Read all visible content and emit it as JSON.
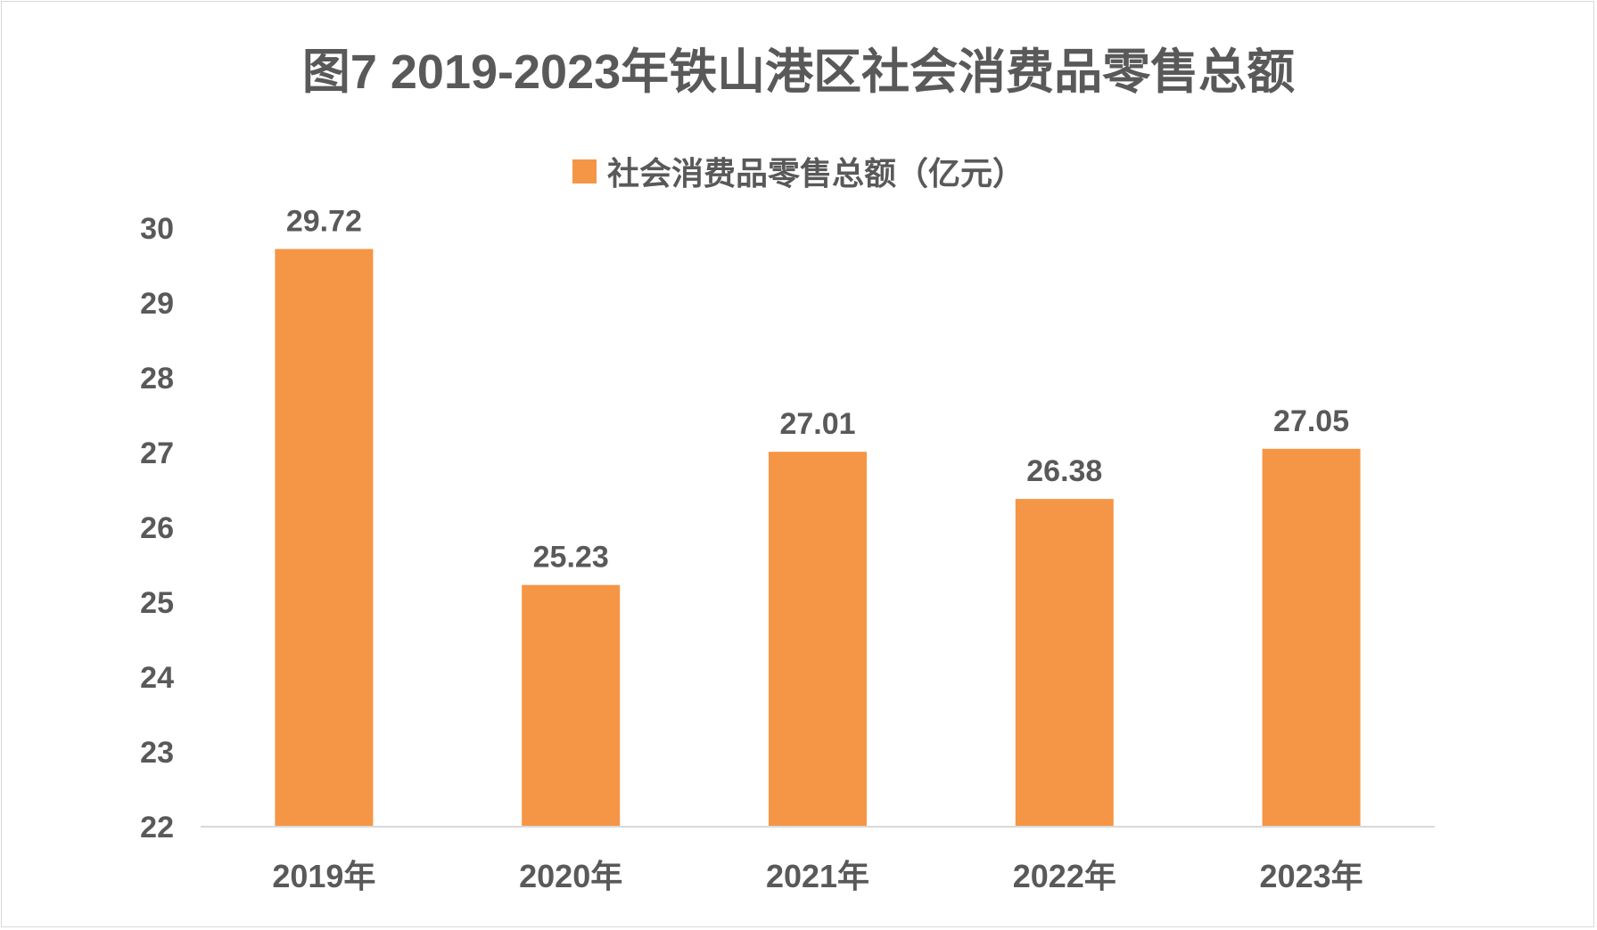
{
  "chart_data": {
    "type": "bar",
    "title": "图7 2019-2023年铁山港区社会消费品零售总额",
    "categories": [
      "2019年",
      "2020年",
      "2021年",
      "2022年",
      "2023年"
    ],
    "series": [
      {
        "name": "社会消费品零售总额（亿元）",
        "values": [
          29.72,
          25.23,
          27.01,
          26.38,
          27.05
        ]
      }
    ],
    "data_labels": [
      "29.72",
      "25.23",
      "27.01",
      "26.38",
      "27.05"
    ],
    "xlabel": "",
    "ylabel": "",
    "ylim": [
      22,
      30
    ],
    "yticks": [
      22,
      23,
      24,
      25,
      26,
      27,
      28,
      29,
      30
    ],
    "grid": false,
    "legend_position": "top",
    "colors": {
      "bar": "#f59646",
      "text": "#595959",
      "axis": "#d9d9d9"
    }
  }
}
